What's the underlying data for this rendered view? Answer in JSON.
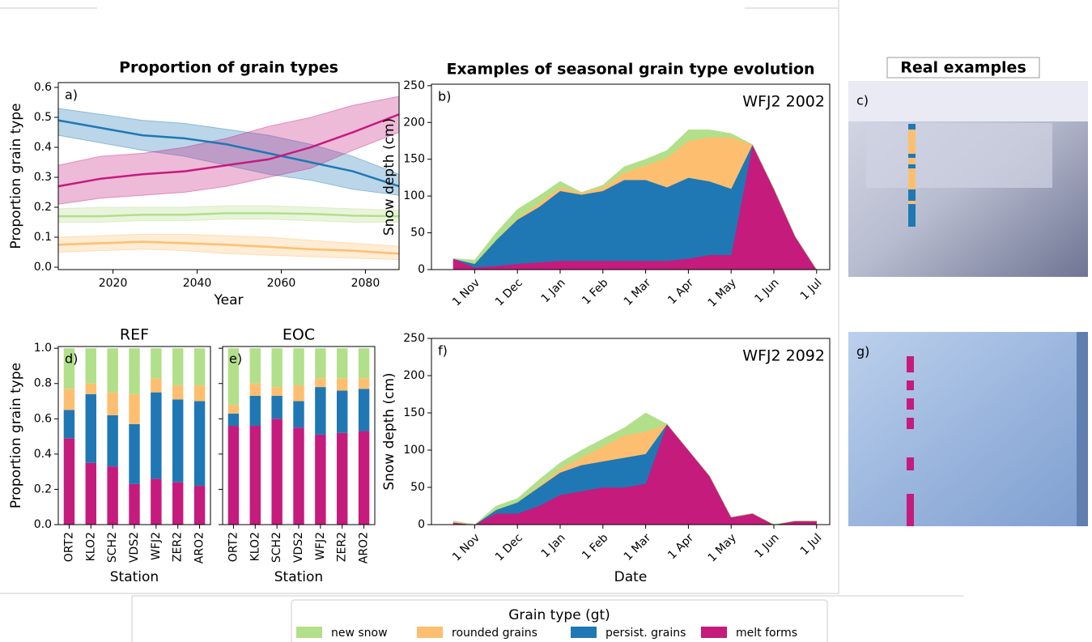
{
  "chart_data": [
    {
      "type": "line",
      "title": "Proportion of grain types",
      "label": "a)",
      "xlabel": "Year",
      "ylabel": "Proportion grain type",
      "x": [
        2007,
        2017,
        2027,
        2037,
        2047,
        2057,
        2067,
        2077,
        2088
      ],
      "xlim": [
        2007,
        2088
      ],
      "xticks": [
        2020,
        2040,
        2060,
        2080
      ],
      "ylim": [
        -0.008,
        0.616
      ],
      "yticks": [
        {
          "value": 0,
          "label": "0.0"
        },
        0.1,
        0.2,
        0.3,
        0.4,
        0.5,
        0.6
      ],
      "series": [
        {
          "name": "new snow",
          "color": "#b2df8a",
          "values": [
            0.17,
            0.17,
            0.175,
            0.175,
            0.18,
            0.18,
            0.178,
            0.172,
            0.17
          ],
          "lower": [
            0.15,
            0.15,
            0.155,
            0.155,
            0.16,
            0.16,
            0.155,
            0.15,
            0.15
          ],
          "upper": [
            0.195,
            0.2,
            0.2,
            0.2,
            0.205,
            0.205,
            0.2,
            0.195,
            0.19
          ]
        },
        {
          "name": "rounded grains",
          "color": "#fdbf6f",
          "values": [
            0.075,
            0.08,
            0.085,
            0.08,
            0.075,
            0.068,
            0.06,
            0.055,
            0.045
          ],
          "lower": [
            0.05,
            0.055,
            0.06,
            0.055,
            0.045,
            0.04,
            0.035,
            0.03,
            0.025
          ],
          "upper": [
            0.1,
            0.105,
            0.11,
            0.11,
            0.105,
            0.1,
            0.09,
            0.08,
            0.07
          ]
        },
        {
          "name": "persist. grains",
          "color": "#1f78b4",
          "values": [
            0.49,
            0.465,
            0.44,
            0.43,
            0.41,
            0.38,
            0.35,
            0.32,
            0.27
          ],
          "lower": [
            0.44,
            0.415,
            0.39,
            0.37,
            0.34,
            0.31,
            0.29,
            0.26,
            0.24
          ],
          "upper": [
            0.53,
            0.51,
            0.49,
            0.48,
            0.46,
            0.44,
            0.41,
            0.37,
            0.31
          ]
        },
        {
          "name": "melt forms",
          "color": "#c51b7d",
          "values": [
            0.27,
            0.295,
            0.31,
            0.32,
            0.34,
            0.36,
            0.4,
            0.45,
            0.51
          ],
          "lower": [
            0.21,
            0.23,
            0.24,
            0.25,
            0.27,
            0.3,
            0.33,
            0.39,
            0.45
          ],
          "upper": [
            0.34,
            0.37,
            0.38,
            0.4,
            0.43,
            0.47,
            0.5,
            0.54,
            0.57
          ]
        }
      ]
    },
    {
      "type": "bar",
      "stacked": true,
      "title": "REF",
      "label": "d)",
      "xlabel": "Station",
      "ylabel": "Proportion grain type",
      "categories": [
        "ORT2",
        "KLO2",
        "SCH2",
        "VDS2",
        "WFJ2",
        "ZER2",
        "ARO2"
      ],
      "ylim": [
        0,
        1.01
      ],
      "yticks": [
        {
          "value": 0,
          "label": "0.0"
        },
        0.2,
        0.4,
        0.6,
        0.8,
        {
          "value": 1,
          "label": "1.0"
        }
      ],
      "series": [
        {
          "name": "melt forms",
          "color": "#c51b7d",
          "values": [
            0.49,
            0.35,
            0.33,
            0.23,
            0.26,
            0.24,
            0.22
          ]
        },
        {
          "name": "persist. grains",
          "color": "#1f78b4",
          "values": [
            0.16,
            0.39,
            0.29,
            0.34,
            0.49,
            0.47,
            0.48
          ]
        },
        {
          "name": "rounded grains",
          "color": "#fdbf6f",
          "values": [
            0.12,
            0.06,
            0.13,
            0.17,
            0.08,
            0.08,
            0.09
          ]
        },
        {
          "name": "new snow",
          "color": "#b2df8a",
          "values": [
            0.23,
            0.2,
            0.25,
            0.26,
            0.17,
            0.21,
            0.21
          ]
        }
      ]
    },
    {
      "type": "bar",
      "stacked": true,
      "title": "EOC",
      "label": "e)",
      "xlabel": "Station",
      "ytick_labels": false,
      "categories": [
        "ORT2",
        "KLO2",
        "SCH2",
        "VDS2",
        "WFJ2",
        "ZER2",
        "ARO2"
      ],
      "ylim": [
        0,
        1.01
      ],
      "yticks": [
        {
          "value": 0,
          "label": "0.0"
        },
        0.2,
        0.4,
        0.6,
        0.8,
        {
          "value": 1,
          "label": "1.0"
        }
      ],
      "series": [
        {
          "name": "melt forms",
          "color": "#c51b7d",
          "values": [
            0.56,
            0.56,
            0.6,
            0.55,
            0.51,
            0.52,
            0.53
          ]
        },
        {
          "name": "persist. grains",
          "color": "#1f78b4",
          "values": [
            0.07,
            0.17,
            0.13,
            0.15,
            0.27,
            0.24,
            0.24
          ]
        },
        {
          "name": "rounded grains",
          "color": "#fdbf6f",
          "values": [
            0.05,
            0.07,
            0.05,
            0.09,
            0.05,
            0.07,
            0.06
          ]
        },
        {
          "name": "new snow",
          "color": "#b2df8a",
          "values": [
            0.32,
            0.2,
            0.22,
            0.21,
            0.17,
            0.17,
            0.17
          ]
        }
      ]
    },
    {
      "type": "area",
      "stacked": true,
      "title": "Examples of seasonal grain type evolution",
      "label": "b)",
      "annotation": "WFJ2 2002",
      "ylabel": "Snow depth (cm)",
      "categories": [
        null,
        "1 Nov",
        null,
        "1 Dec",
        null,
        "1 Jan",
        null,
        "1 Feb",
        null,
        "1 Mar",
        null,
        "1 Apr",
        null,
        "1 May",
        null,
        "1 Jun",
        null,
        "1 Jul"
      ],
      "ylim": [
        0,
        252
      ],
      "yticks": [
        0,
        50,
        100,
        150,
        200,
        250
      ],
      "series": [
        {
          "name": "melt forms",
          "color": "#c51b7d",
          "values": [
            15,
            3,
            5,
            8,
            10,
            12,
            12,
            12,
            12,
            12,
            12,
            15,
            20,
            20,
            170,
            110,
            45,
            0
          ]
        },
        {
          "name": "persist. grains",
          "color": "#1f78b4",
          "values": [
            0,
            5,
            35,
            60,
            75,
            95,
            90,
            95,
            110,
            110,
            100,
            110,
            100,
            90,
            0,
            0,
            0,
            0
          ]
        },
        {
          "name": "rounded grains",
          "color": "#fdbf6f",
          "values": [
            0,
            0,
            0,
            2,
            5,
            5,
            3,
            5,
            10,
            20,
            40,
            50,
            60,
            70,
            0,
            0,
            0,
            0
          ]
        },
        {
          "name": "new snow",
          "color": "#b2df8a",
          "values": [
            0,
            5,
            10,
            12,
            10,
            8,
            0,
            3,
            8,
            8,
            10,
            15,
            10,
            5,
            0,
            0,
            0,
            0
          ]
        }
      ]
    },
    {
      "type": "area",
      "stacked": true,
      "label": "f)",
      "annotation": "WFJ2 2092",
      "xlabel": "Date",
      "ylabel": "Snow depth (cm)",
      "categories": [
        null,
        "1 Nov",
        null,
        "1 Dec",
        null,
        "1 Jan",
        null,
        "1 Feb",
        null,
        "1 Mar",
        null,
        "1 Apr",
        null,
        "1 May",
        null,
        "1 Jun",
        null,
        "1 Jul"
      ],
      "ylim": [
        0,
        250
      ],
      "yticks": [
        0,
        50,
        100,
        150,
        200,
        250
      ],
      "series": [
        {
          "name": "melt forms",
          "color": "#c51b7d",
          "values": [
            3,
            0,
            15,
            15,
            25,
            40,
            45,
            50,
            50,
            55,
            135,
            100,
            65,
            10,
            15,
            0,
            5,
            5
          ]
        },
        {
          "name": "persist. grains",
          "color": "#1f78b4",
          "values": [
            0,
            0,
            5,
            15,
            25,
            30,
            35,
            35,
            40,
            40,
            0,
            0,
            0,
            0,
            0,
            0,
            0,
            0
          ]
        },
        {
          "name": "rounded grains",
          "color": "#fdbf6f",
          "values": [
            0,
            0,
            0,
            0,
            2,
            5,
            10,
            20,
            30,
            30,
            0,
            0,
            0,
            0,
            0,
            0,
            0,
            0
          ]
        },
        {
          "name": "new snow",
          "color": "#b2df8a",
          "values": [
            2,
            0,
            5,
            5,
            8,
            8,
            10,
            10,
            10,
            25,
            0,
            0,
            0,
            0,
            0,
            0,
            0,
            0
          ]
        }
      ]
    }
  ],
  "legend_title": "Grain type (gt)",
  "photos": {
    "title": "Real examples",
    "labels": [
      "c)",
      "g)"
    ]
  }
}
